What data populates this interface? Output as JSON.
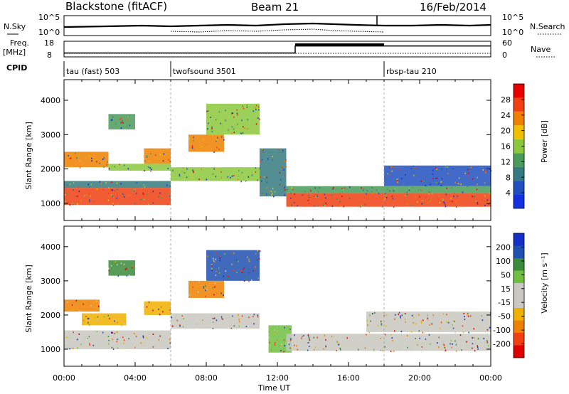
{
  "header": {
    "station": "Blackstone (fitACF)",
    "beam": "Beam 21",
    "date": "16/Feb/2014"
  },
  "top_strip": {
    "nsky_label": "N.Sky",
    "nsky_ticks": [
      "10^5",
      "10^0"
    ],
    "right_ticks": [
      "10^5",
      "10^0"
    ],
    "nsearch_label": "N.Search",
    "freq_label": "Freq.",
    "freq_unit": "[MHz]",
    "freq_ticks": [
      "18",
      "8"
    ],
    "nave_ticks": [
      "60",
      "0"
    ],
    "nave_label": "Nave",
    "cpid_label": "CPID",
    "cpid_segments": [
      {
        "label": "tau (fast) 503",
        "start_hour": 0,
        "end_hour": 6
      },
      {
        "label": "twofsound 3501",
        "start_hour": 6,
        "end_hour": 18
      },
      {
        "label": "rbsp-tau 210",
        "start_hour": 18,
        "end_hour": 24
      }
    ],
    "freq_levels": [
      {
        "start_hour": 0,
        "end_hour": 6,
        "mhz": 10.5
      },
      {
        "start_hour": 6,
        "end_hour": 13,
        "mhz": 10.5
      },
      {
        "start_hour": 13,
        "end_hour": 24,
        "mhz": 15
      }
    ]
  },
  "colors": {
    "power_scale": [
      "#1430e0",
      "#2050c0",
      "#357a7f",
      "#4a9a5a",
      "#8cc83c",
      "#f0c000",
      "#f08000",
      "#f04010",
      "#e80000"
    ],
    "velocity_scale": [
      "#e00000",
      "#f04010",
      "#f08000",
      "#f0b000",
      "#c8c8c0",
      "#c8c8c0",
      "#70c040",
      "#3a8c3a",
      "#2050b0",
      "#1430c8"
    ]
  },
  "chart_data": [
    {
      "type": "heatmap",
      "panel": "power",
      "xlabel": "",
      "ylabel": "Slant Range [km]",
      "xlim": [
        0,
        24
      ],
      "ylim": [
        500,
        4600
      ],
      "xticks": [
        "00:00",
        "04:00",
        "08:00",
        "12:00",
        "16:00",
        "20:00",
        "00:00"
      ],
      "yticks": [
        "1000",
        "2000",
        "3000",
        "4000"
      ],
      "colorbar": {
        "label": "Power [dB]",
        "ticks": [
          "4",
          "8",
          "12",
          "16",
          "20",
          "24",
          "28"
        ],
        "range": [
          0,
          32
        ]
      },
      "bands": [
        {
          "start_hour": 0.0,
          "end_hour": 6.0,
          "range_km": [
            950,
            1450
          ],
          "level": 26
        },
        {
          "start_hour": 0.0,
          "end_hour": 6.0,
          "range_km": [
            1450,
            1650
          ],
          "level": 10
        },
        {
          "start_hour": 0.0,
          "end_hour": 2.5,
          "range_km": [
            2050,
            2500
          ],
          "level": 22
        },
        {
          "start_hour": 2.5,
          "end_hour": 6.0,
          "range_km": [
            1950,
            2150
          ],
          "level": 16
        },
        {
          "start_hour": 2.5,
          "end_hour": 4.0,
          "range_km": [
            3150,
            3600
          ],
          "level": 14
        },
        {
          "start_hour": 4.5,
          "end_hour": 6.0,
          "range_km": [
            2150,
            2600
          ],
          "level": 22
        },
        {
          "start_hour": 6.0,
          "end_hour": 11.0,
          "range_km": [
            1650,
            2050
          ],
          "level": 16
        },
        {
          "start_hour": 7.0,
          "end_hour": 9.0,
          "range_km": [
            2500,
            3000
          ],
          "level": 24
        },
        {
          "start_hour": 8.0,
          "end_hour": 11.0,
          "range_km": [
            3000,
            3900
          ],
          "level": 16
        },
        {
          "start_hour": 11.0,
          "end_hour": 12.5,
          "range_km": [
            1200,
            2600
          ],
          "level": 8
        },
        {
          "start_hour": 12.5,
          "end_hour": 24.0,
          "range_km": [
            900,
            1300
          ],
          "level": 27
        },
        {
          "start_hour": 12.5,
          "end_hour": 24.0,
          "range_km": [
            1300,
            1500
          ],
          "level": 12
        },
        {
          "start_hour": 18.0,
          "end_hour": 24.0,
          "range_km": [
            1500,
            2100
          ],
          "level": 7
        }
      ]
    },
    {
      "type": "heatmap",
      "panel": "velocity",
      "xlabel": "Time UT",
      "ylabel": "Slant Range [km]",
      "xlim": [
        0,
        24
      ],
      "ylim": [
        500,
        4600
      ],
      "xticks": [
        "00:00",
        "04:00",
        "08:00",
        "12:00",
        "16:00",
        "20:00",
        "00:00"
      ],
      "yticks": [
        "1000",
        "2000",
        "3000",
        "4000"
      ],
      "colorbar": {
        "label": "Velocity [m s⁻¹]",
        "ticks": [
          "200",
          "100",
          "50",
          "15",
          "-15",
          "-50",
          "-100",
          "-200"
        ],
        "range": [
          -250,
          250
        ]
      },
      "bands": [
        {
          "start_hour": 0.0,
          "end_hour": 6.0,
          "range_km": [
            1000,
            1550
          ],
          "level": 0
        },
        {
          "start_hour": 0.0,
          "end_hour": 2.0,
          "range_km": [
            2100,
            2450
          ],
          "level": -140
        },
        {
          "start_hour": 1.0,
          "end_hour": 3.5,
          "range_km": [
            1700,
            2050
          ],
          "level": -90
        },
        {
          "start_hour": 2.5,
          "end_hour": 4.0,
          "range_km": [
            3150,
            3600
          ],
          "level": 120
        },
        {
          "start_hour": 4.5,
          "end_hour": 6.0,
          "range_km": [
            2000,
            2400
          ],
          "level": -60
        },
        {
          "start_hour": 7.0,
          "end_hour": 9.0,
          "range_km": [
            2500,
            3000
          ],
          "level": -150
        },
        {
          "start_hour": 8.0,
          "end_hour": 11.0,
          "range_km": [
            3000,
            3900
          ],
          "level": 150
        },
        {
          "start_hour": 6.0,
          "end_hour": 11.0,
          "range_km": [
            1600,
            2050
          ],
          "level": -30
        },
        {
          "start_hour": 11.5,
          "end_hour": 12.8,
          "range_km": [
            900,
            1700
          ],
          "level": 60
        },
        {
          "start_hour": 12.5,
          "end_hour": 24.0,
          "range_km": [
            950,
            1450
          ],
          "level": 0
        },
        {
          "start_hour": 17.0,
          "end_hour": 24.0,
          "range_km": [
            1500,
            2100
          ],
          "level": 5
        }
      ]
    }
  ]
}
